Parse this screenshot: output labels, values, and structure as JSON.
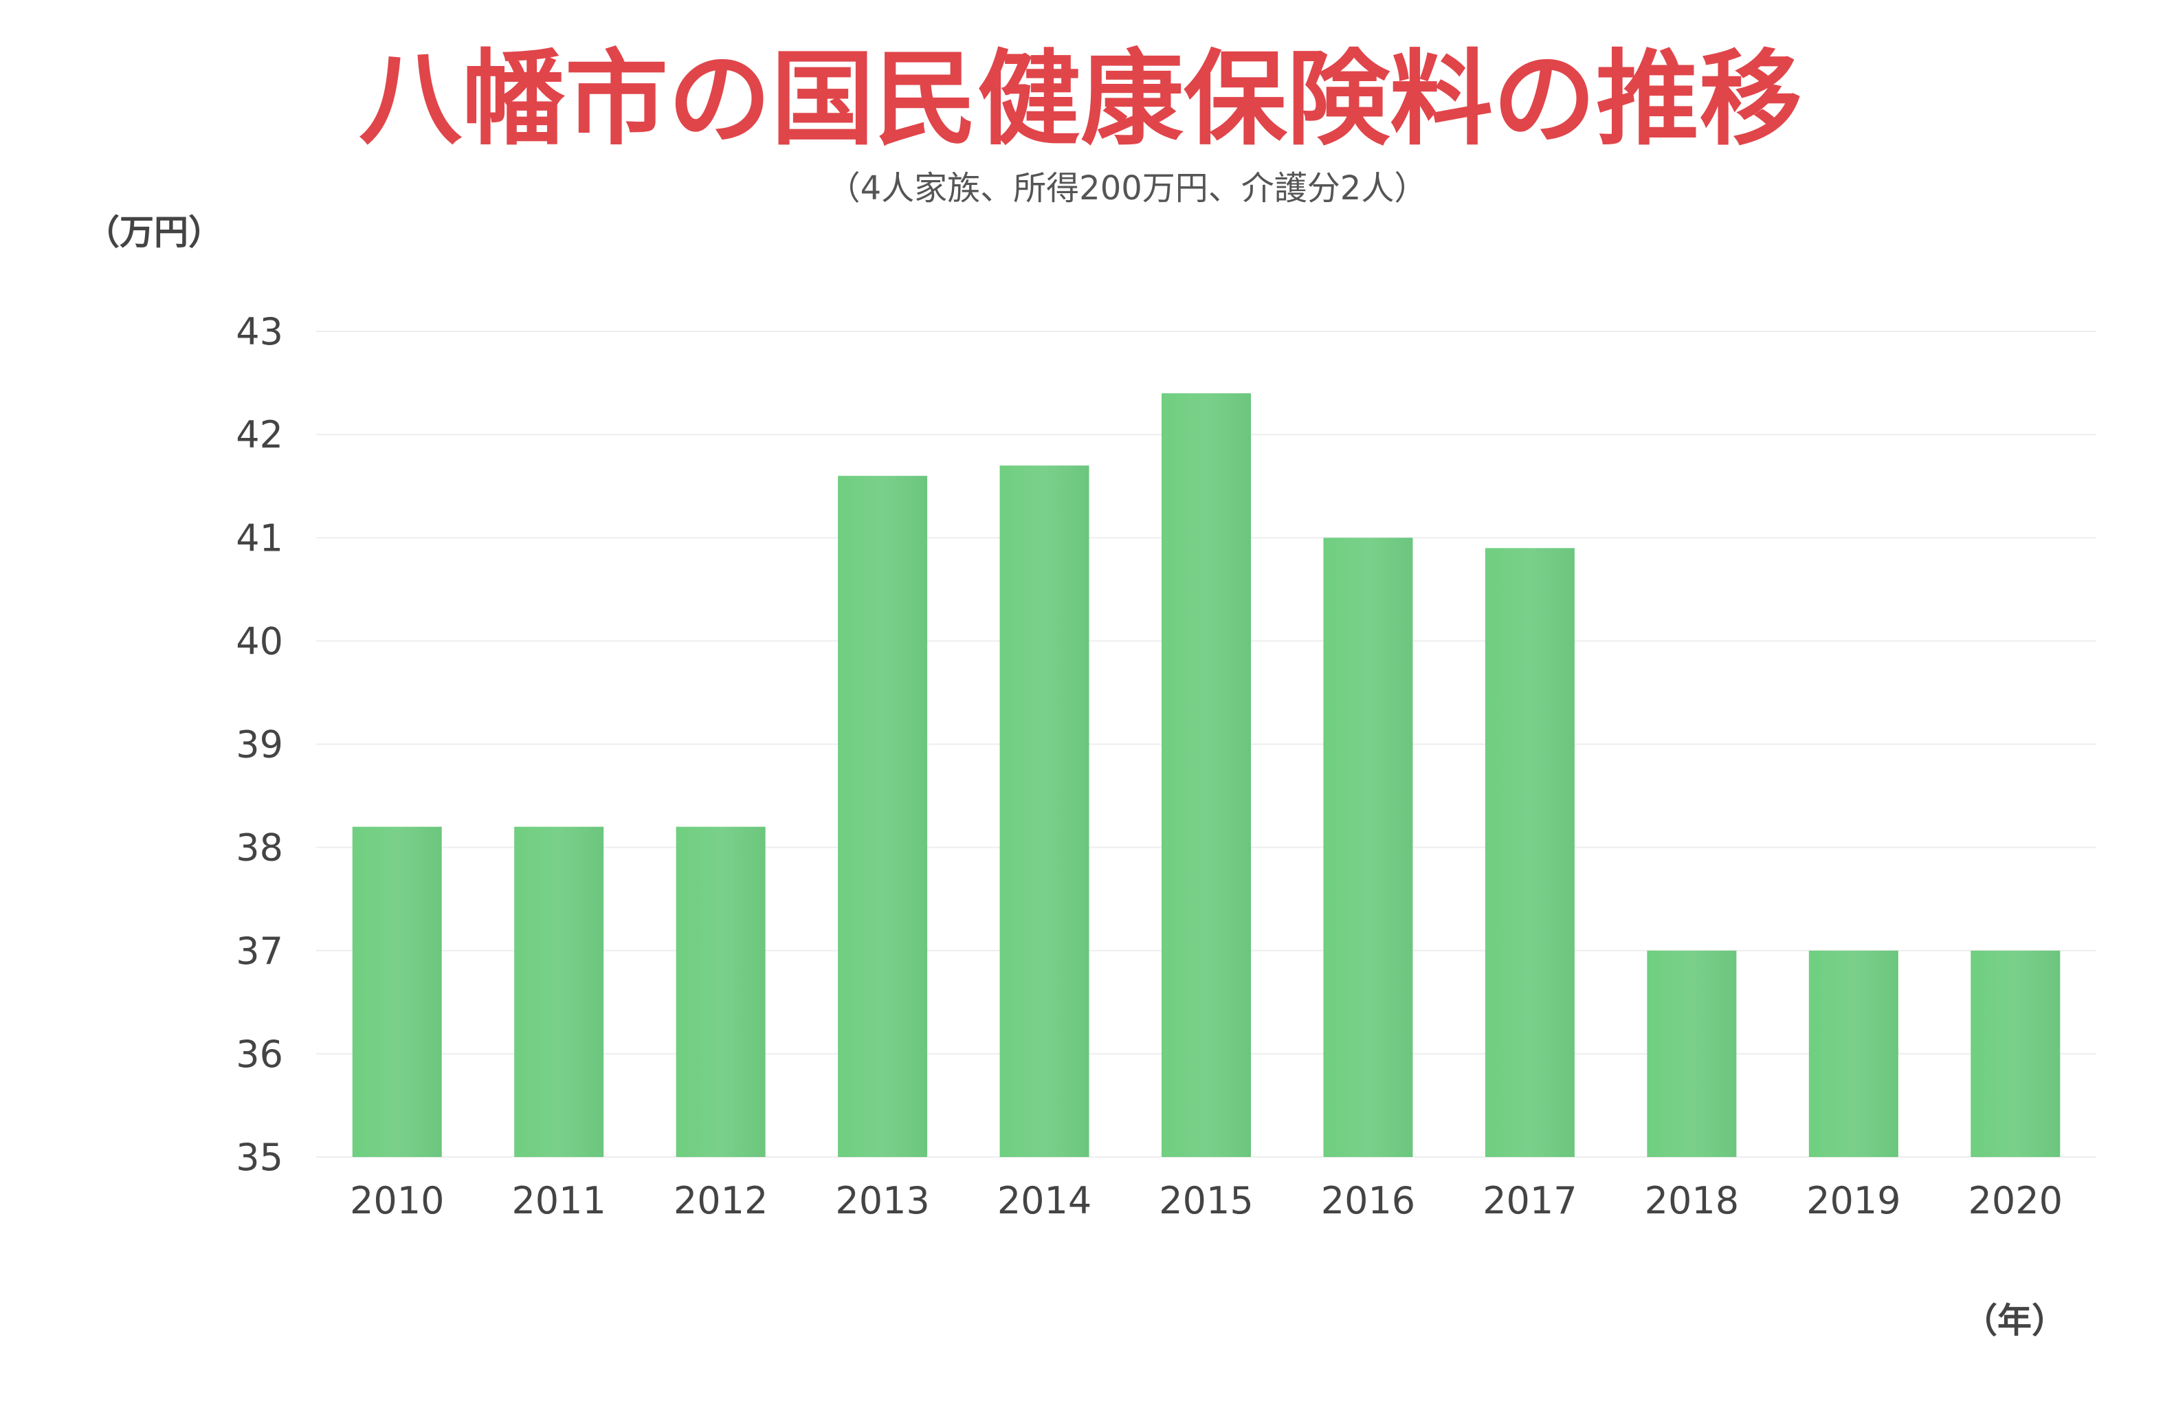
{
  "chart_data": {
    "type": "bar",
    "title": "八幡市の国民健康保険料の推移",
    "subtitle": "（4人家族、所得200万円、介護分2人）",
    "ylabel": "（万円）",
    "xlabel": "（年）",
    "categories": [
      "2010",
      "2011",
      "2012",
      "2013",
      "2014",
      "2015",
      "2016",
      "2017",
      "2018",
      "2019",
      "2020"
    ],
    "values": [
      38.2,
      38.2,
      38.2,
      41.6,
      41.7,
      42.4,
      41.0,
      40.9,
      37.0,
      37.0,
      37.0
    ],
    "ylim": [
      35,
      43
    ],
    "yticks": [
      "35",
      "36",
      "37",
      "38",
      "39",
      "40",
      "41",
      "42",
      "43"
    ],
    "grid": true,
    "legend": "none",
    "bar_color": "#74c983"
  }
}
